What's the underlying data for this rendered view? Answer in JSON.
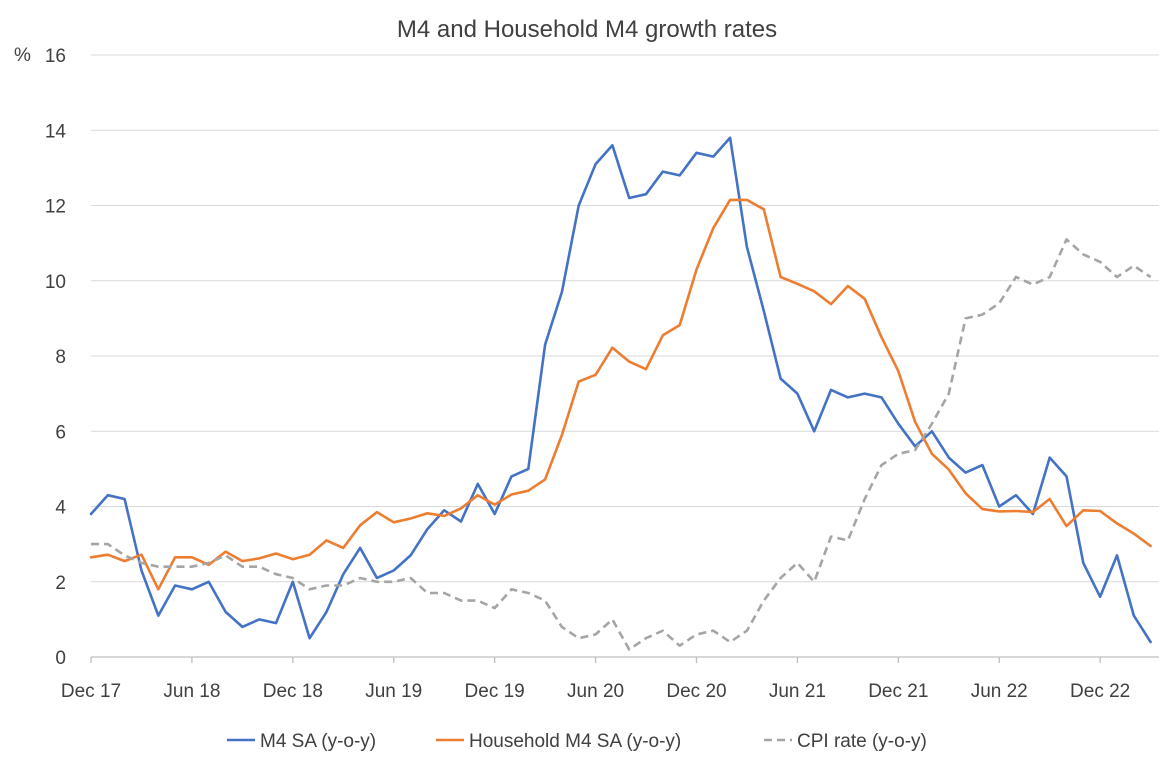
{
  "chart_data": {
    "type": "line",
    "title": "M4 and Household M4 growth rates",
    "y_unit_label": "%",
    "ylim": [
      0,
      16
    ],
    "y_ticks": [
      0,
      2,
      4,
      6,
      8,
      10,
      12,
      14,
      16
    ],
    "grid": "horizontal",
    "legend_position": "bottom",
    "x_tick_labels": [
      "Dec 17",
      "Jun 18",
      "Dec 18",
      "Jun 19",
      "Dec 19",
      "Jun 20",
      "Dec 20",
      "Jun 21",
      "Dec 21",
      "Jun 22",
      "Dec 22"
    ],
    "x_tick_months": [
      0,
      6,
      12,
      18,
      24,
      30,
      36,
      42,
      48,
      54,
      60
    ],
    "month_count": 64,
    "series": [
      {
        "name": "M4 SA (y-o-y)",
        "color": "#4472C4",
        "style": "solid",
        "values": [
          3.8,
          4.3,
          4.2,
          2.3,
          1.1,
          1.9,
          1.8,
          2.0,
          1.2,
          0.8,
          1.0,
          0.9,
          2.0,
          0.5,
          1.2,
          2.2,
          2.9,
          2.1,
          2.3,
          2.7,
          3.4,
          3.9,
          3.6,
          4.6,
          3.8,
          4.8,
          5.0,
          8.3,
          9.7,
          12.0,
          13.1,
          13.6,
          12.2,
          12.3,
          12.9,
          12.8,
          13.4,
          13.3,
          13.8,
          10.9,
          9.2,
          7.4,
          7.0,
          6.0,
          7.1,
          6.9,
          7.0,
          6.9,
          6.2,
          5.6,
          6.0,
          5.3,
          4.9,
          5.1,
          4.0,
          4.3,
          3.8,
          5.3,
          4.8,
          2.5,
          1.6,
          2.7,
          1.1,
          0.4
        ]
      },
      {
        "name": "Household M4 SA (y-o-y)",
        "color": "#ED7D31",
        "style": "solid",
        "values": [
          2.65,
          2.72,
          2.55,
          2.72,
          1.8,
          2.65,
          2.65,
          2.45,
          2.8,
          2.55,
          2.62,
          2.75,
          2.6,
          2.72,
          3.1,
          2.9,
          3.5,
          3.85,
          3.58,
          3.68,
          3.82,
          3.75,
          3.95,
          4.3,
          4.05,
          4.32,
          4.42,
          4.72,
          5.9,
          7.32,
          7.5,
          8.22,
          7.85,
          7.65,
          8.55,
          8.82,
          10.3,
          11.4,
          12.15,
          12.15,
          11.9,
          10.1,
          9.92,
          9.72,
          9.38,
          9.86,
          9.52,
          8.5,
          7.6,
          6.25,
          5.4,
          4.98,
          4.35,
          3.93,
          3.87,
          3.88,
          3.85,
          4.2,
          3.48,
          3.9,
          3.88,
          3.55,
          3.28,
          2.95
        ]
      },
      {
        "name": "CPI rate (y-o-y)",
        "color": "#A5A5A5",
        "style": "dashed",
        "values": [
          3.0,
          3.0,
          2.7,
          2.5,
          2.4,
          2.4,
          2.4,
          2.5,
          2.7,
          2.4,
          2.4,
          2.2,
          2.1,
          1.8,
          1.9,
          1.9,
          2.1,
          2.0,
          2.0,
          2.1,
          1.7,
          1.7,
          1.5,
          1.5,
          1.3,
          1.8,
          1.7,
          1.5,
          0.8,
          0.5,
          0.6,
          1.0,
          0.2,
          0.5,
          0.7,
          0.3,
          0.6,
          0.7,
          0.4,
          0.7,
          1.5,
          2.1,
          2.5,
          2.0,
          3.2,
          3.1,
          4.2,
          5.1,
          5.4,
          5.5,
          6.2,
          7.0,
          9.0,
          9.1,
          9.4,
          10.1,
          9.9,
          10.1,
          11.1,
          10.7,
          10.5,
          10.1,
          10.4,
          10.1
        ]
      }
    ]
  }
}
